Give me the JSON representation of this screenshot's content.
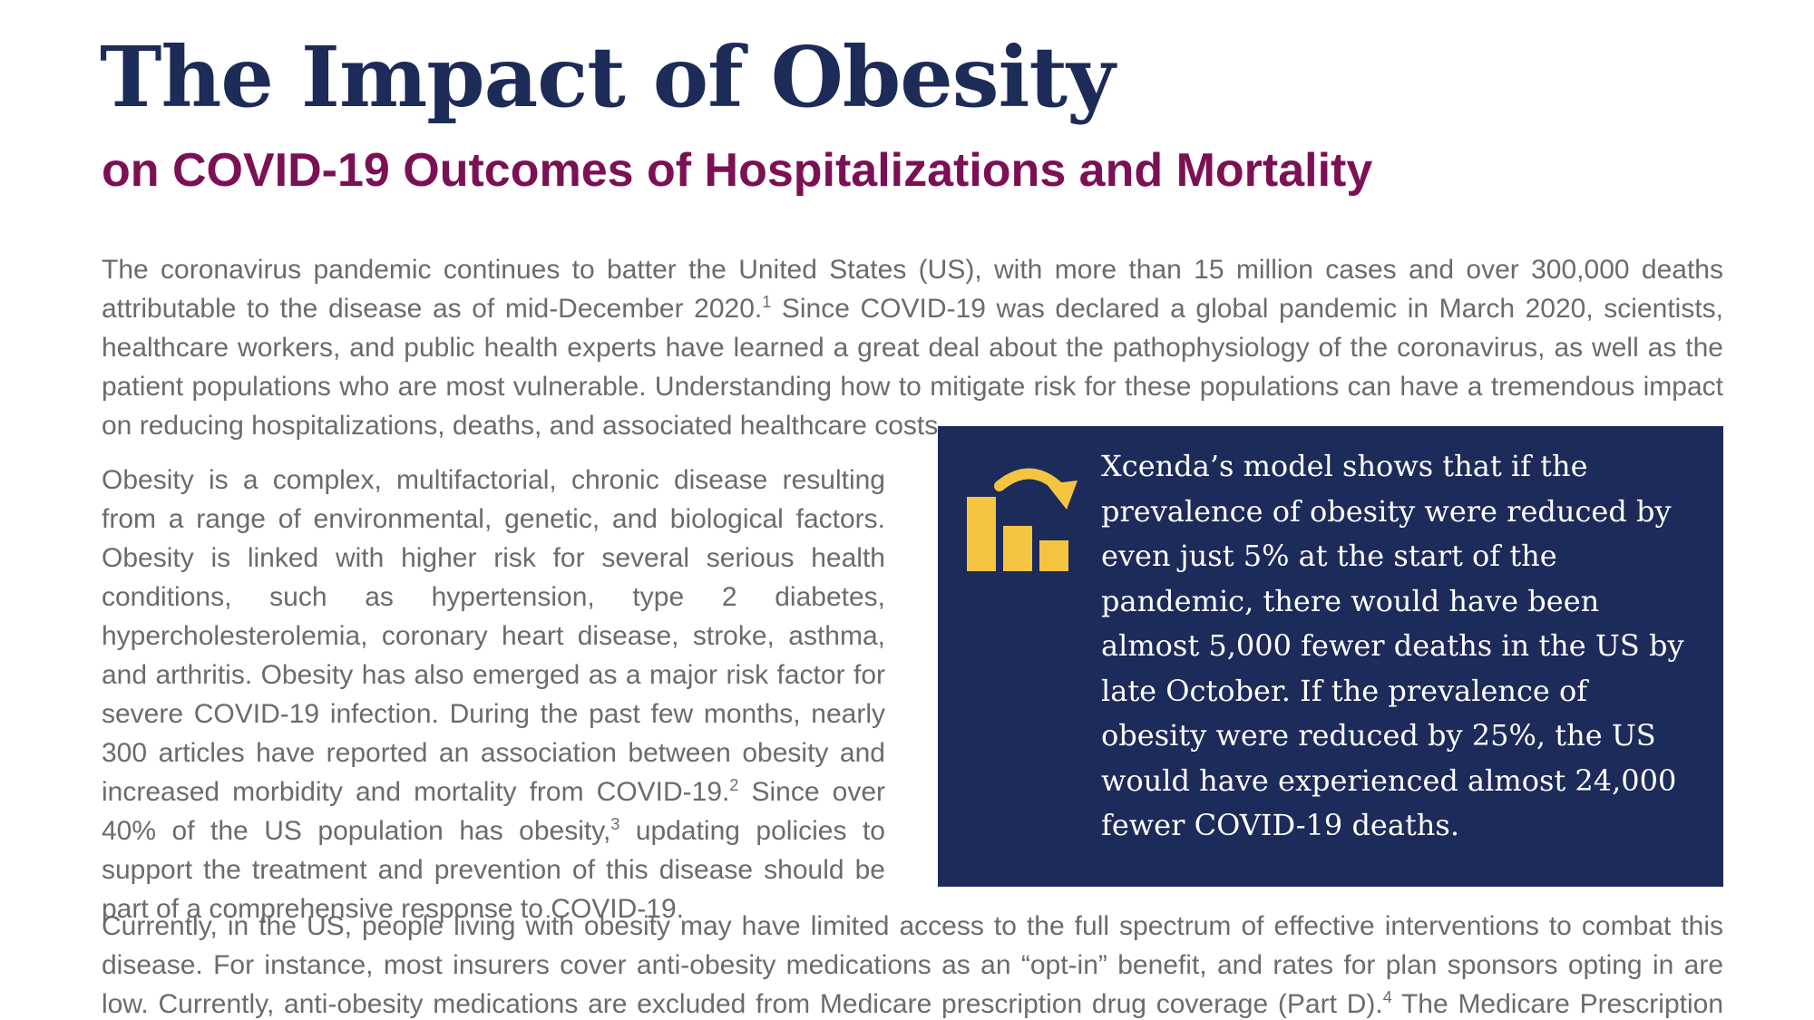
{
  "header": {
    "title": "The Impact of Obesity",
    "subtitle": "on COVID-19 Outcomes of Hospitalizations and Mortality"
  },
  "body": {
    "paragraph1": {
      "part1": "The coronavirus pandemic continues to batter the United States (US), with more than 15 million cases and over 300,000 deaths attributable to the disease as of mid-December 2020.",
      "ref1": "1",
      "part2": " Since COVID-19 was declared a global pandemic in March 2020, scientists, healthcare workers, and public health experts have learned a great deal about the pathophysiology of the coronavirus, as well as the patient populations who are most vulnerable. Understanding how to mitigate risk for these populations can have a tremendous impact on reducing hospitalizations, deaths, and associated healthcare costs."
    },
    "paragraph2": {
      "part1": "Obesity is a complex, multifactorial, chronic disease resulting from a range of environmental, genetic, and biological factors. Obesity is linked with higher risk for several serious health conditions, such as hypertension, type 2 diabetes, hypercholesterolemia, coronary heart disease, stroke, asthma, and arthritis. Obesity has also emerged as a major risk factor for severe COVID-19 infection. During the past few months, nearly 300 articles have reported an association between obesity and increased morbidity and mortality from COVID-19.",
      "ref2": "2",
      "part2": " Since over 40% of the US population has obesity,",
      "ref3": "3",
      "part3": " updating policies to support the treatment and prevention of this disease should be part of a comprehensive response to COVID-19."
    },
    "paragraph3": {
      "part1": "Currently, in the US, people living with obesity may have limited access to the full spectrum of effective interventions to combat this disease. For instance, most insurers cover anti-obesity medications as an “opt-in” benefit, and rates for plan sponsors opting in are low. Currently, anti-obesity medications are excluded from Medicare prescription drug coverage (Part D).",
      "ref4": "4",
      "part2": " The Medicare Prescription Drug, Improvement, and Modernization"
    }
  },
  "callout": {
    "icon": "bar-chart-down-arrow-icon",
    "text": "Xcenda’s model shows that if the prevalence of obesity were reduced by even just 5% at the start of the pandemic, there would have been almost 5,000 fewer deaths in the US by late October. If the prevalence of obesity were reduced by 25%, the US would have experienced almost 24,000 fewer COVID-19 deaths."
  },
  "colors": {
    "title": "#1c2b57",
    "subtitle": "#7b1054",
    "body_text": "#6b6b6b",
    "callout_background": "#1d2b5a",
    "callout_icon": "#f5c542"
  }
}
